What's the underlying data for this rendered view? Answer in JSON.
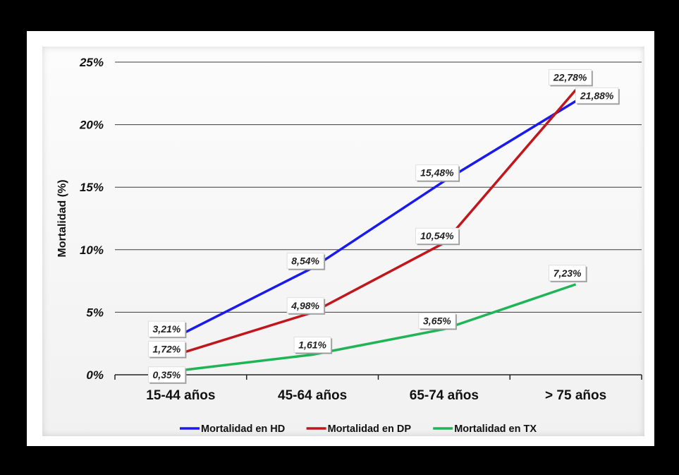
{
  "chart_data": {
    "type": "line",
    "ylabel": "Mortalidad (%)",
    "xlabel": "",
    "categories": [
      "15-44 años",
      "45-64 años",
      "65-74 años",
      "> 75 años"
    ],
    "ylim": [
      0,
      25
    ],
    "yticks": [
      "0%",
      "5%",
      "10%",
      "15%",
      "20%",
      "25%"
    ],
    "grid": true,
    "legend_position": "bottom",
    "series": [
      {
        "name": "Mortalidad en HD",
        "color": "#1a1aee",
        "values": [
          3.21,
          8.54,
          15.48,
          21.88
        ],
        "labels": [
          "3,21%",
          "8,54%",
          "15,48%",
          "21,88%"
        ]
      },
      {
        "name": "Mortalidad en DP",
        "color": "#c0161c",
        "values": [
          1.72,
          4.98,
          10.54,
          22.78
        ],
        "labels": [
          "1,72%",
          "4,98%",
          "10,54%",
          "22,78%"
        ]
      },
      {
        "name": "Mortalidad en TX",
        "color": "#1fb455",
        "values": [
          0.35,
          1.61,
          3.65,
          7.23
        ],
        "labels": [
          "0,35%",
          "1,61%",
          "3,65%",
          "7,23%"
        ]
      }
    ]
  }
}
